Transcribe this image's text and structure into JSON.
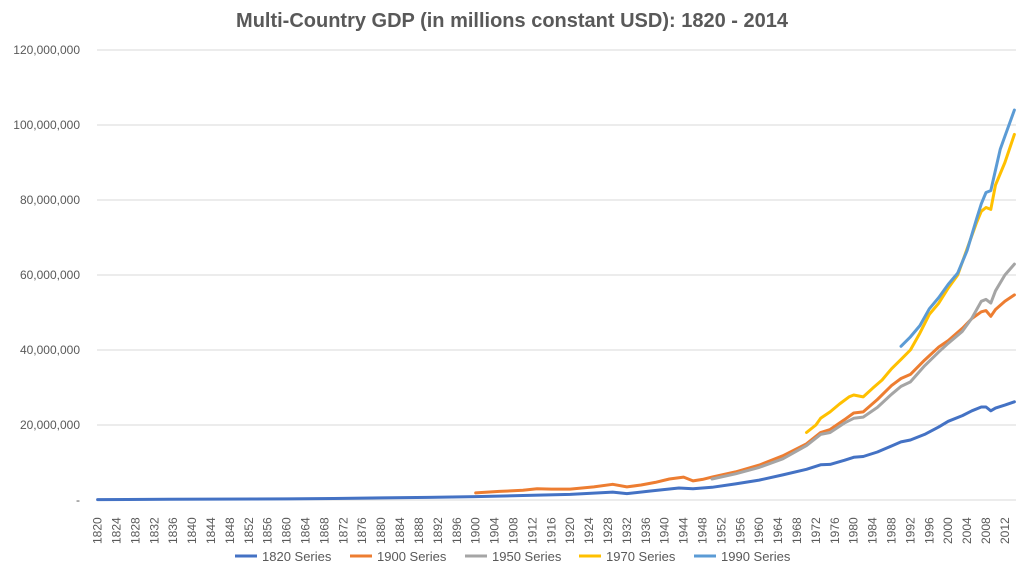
{
  "chart_data": {
    "type": "line",
    "title": "Multi-Country GDP (in millions constant USD): 1820 - 2014",
    "xlabel": "",
    "ylabel": "",
    "xlim": [
      1820,
      2014
    ],
    "ylim": [
      0,
      120000000
    ],
    "y_ticks": [
      0,
      20000000,
      40000000,
      60000000,
      80000000,
      100000000,
      120000000
    ],
    "y_tick_labels": [
      "-",
      "20,000,000",
      "40,000,000",
      "60,000,000",
      "80,000,000",
      "100,000,000",
      "120,000,000"
    ],
    "x_tick_labels": [
      "1820",
      "1824",
      "1828",
      "1832",
      "1836",
      "1840",
      "1844",
      "1848",
      "1852",
      "1856",
      "1860",
      "1864",
      "1868",
      "1872",
      "1876",
      "1880",
      "1884",
      "1888",
      "1892",
      "1896",
      "1900",
      "1904",
      "1908",
      "1912",
      "1916",
      "1920",
      "1924",
      "1928",
      "1932",
      "1936",
      "1940",
      "1944",
      "1948",
      "1952",
      "1956",
      "1960",
      "1964",
      "1968",
      "1972",
      "1976",
      "1980",
      "1984",
      "1988",
      "1992",
      "1996",
      "2000",
      "2004",
      "2008",
      "2012"
    ],
    "grid": true,
    "legend_position": "bottom",
    "series": [
      {
        "name": "1820 Series",
        "color": "#4472C4",
        "points": [
          [
            1820,
            100000
          ],
          [
            1835,
            200000
          ],
          [
            1860,
            300000
          ],
          [
            1870,
            400000
          ],
          [
            1880,
            550000
          ],
          [
            1890,
            700000
          ],
          [
            1900,
            900000
          ],
          [
            1910,
            1200000
          ],
          [
            1920,
            1500000
          ],
          [
            1929,
            2100000
          ],
          [
            1932,
            1700000
          ],
          [
            1937,
            2400000
          ],
          [
            1943,
            3200000
          ],
          [
            1946,
            3000000
          ],
          [
            1950,
            3400000
          ],
          [
            1955,
            4300000
          ],
          [
            1960,
            5300000
          ],
          [
            1965,
            6700000
          ],
          [
            1970,
            8200000
          ],
          [
            1973,
            9400000
          ],
          [
            1975,
            9500000
          ],
          [
            1978,
            10600000
          ],
          [
            1980,
            11400000
          ],
          [
            1982,
            11600000
          ],
          [
            1985,
            12800000
          ],
          [
            1988,
            14400000
          ],
          [
            1990,
            15500000
          ],
          [
            1992,
            16000000
          ],
          [
            1995,
            17500000
          ],
          [
            1998,
            19500000
          ],
          [
            2000,
            21000000
          ],
          [
            2003,
            22500000
          ],
          [
            2005,
            23800000
          ],
          [
            2007,
            24800000
          ],
          [
            2008,
            24800000
          ],
          [
            2009,
            23800000
          ],
          [
            2010,
            24500000
          ],
          [
            2012,
            25300000
          ],
          [
            2014,
            26200000
          ]
        ]
      },
      {
        "name": "1900 Series",
        "color": "#ED7D31",
        "points": [
          [
            1900,
            1900000
          ],
          [
            1905,
            2300000
          ],
          [
            1910,
            2600000
          ],
          [
            1913,
            3000000
          ],
          [
            1916,
            2900000
          ],
          [
            1920,
            2900000
          ],
          [
            1925,
            3500000
          ],
          [
            1929,
            4200000
          ],
          [
            1932,
            3500000
          ],
          [
            1935,
            4000000
          ],
          [
            1938,
            4700000
          ],
          [
            1941,
            5600000
          ],
          [
            1944,
            6100000
          ],
          [
            1946,
            5100000
          ],
          [
            1948,
            5500000
          ],
          [
            1950,
            6100000
          ],
          [
            1955,
            7500000
          ],
          [
            1960,
            9300000
          ],
          [
            1965,
            11800000
          ],
          [
            1970,
            15000000
          ],
          [
            1973,
            18000000
          ],
          [
            1975,
            18800000
          ],
          [
            1978,
            21400000
          ],
          [
            1980,
            23200000
          ],
          [
            1982,
            23500000
          ],
          [
            1985,
            26800000
          ],
          [
            1988,
            30500000
          ],
          [
            1990,
            32400000
          ],
          [
            1992,
            33500000
          ],
          [
            1995,
            37300000
          ],
          [
            1998,
            40800000
          ],
          [
            2000,
            42500000
          ],
          [
            2003,
            45800000
          ],
          [
            2005,
            48400000
          ],
          [
            2007,
            50200000
          ],
          [
            2008,
            50500000
          ],
          [
            2009,
            49000000
          ],
          [
            2010,
            50800000
          ],
          [
            2012,
            53000000
          ],
          [
            2014,
            54700000
          ]
        ]
      },
      {
        "name": "1950 Series",
        "color": "#A5A5A5",
        "points": [
          [
            1950,
            5600000
          ],
          [
            1955,
            7000000
          ],
          [
            1960,
            8700000
          ],
          [
            1965,
            11000000
          ],
          [
            1970,
            14500000
          ],
          [
            1973,
            17500000
          ],
          [
            1975,
            18000000
          ],
          [
            1978,
            20500000
          ],
          [
            1980,
            21800000
          ],
          [
            1982,
            22100000
          ],
          [
            1985,
            24700000
          ],
          [
            1988,
            28200000
          ],
          [
            1990,
            30300000
          ],
          [
            1992,
            31500000
          ],
          [
            1995,
            35800000
          ],
          [
            1998,
            39500000
          ],
          [
            2000,
            41800000
          ],
          [
            2003,
            45000000
          ],
          [
            2005,
            48500000
          ],
          [
            2007,
            53000000
          ],
          [
            2008,
            53500000
          ],
          [
            2009,
            52500000
          ],
          [
            2010,
            55800000
          ],
          [
            2012,
            60000000
          ],
          [
            2014,
            62900000
          ]
        ]
      },
      {
        "name": "1970 Series",
        "color": "#FFC000",
        "points": [
          [
            1970,
            18000000
          ],
          [
            1972,
            20000000
          ],
          [
            1973,
            21800000
          ],
          [
            1975,
            23500000
          ],
          [
            1977,
            25600000
          ],
          [
            1979,
            27500000
          ],
          [
            1980,
            28000000
          ],
          [
            1982,
            27500000
          ],
          [
            1984,
            29800000
          ],
          [
            1986,
            32000000
          ],
          [
            1988,
            35000000
          ],
          [
            1990,
            37500000
          ],
          [
            1992,
            40000000
          ],
          [
            1994,
            44500000
          ],
          [
            1996,
            49500000
          ],
          [
            1998,
            52500000
          ],
          [
            2000,
            56500000
          ],
          [
            2002,
            60000000
          ],
          [
            2004,
            67000000
          ],
          [
            2006,
            74000000
          ],
          [
            2007,
            77000000
          ],
          [
            2008,
            78000000
          ],
          [
            2009,
            77500000
          ],
          [
            2010,
            84000000
          ],
          [
            2012,
            90000000
          ],
          [
            2014,
            97500000
          ]
        ]
      },
      {
        "name": "1990 Series",
        "color": "#5B9BD5",
        "points": [
          [
            1990,
            41000000
          ],
          [
            1992,
            43500000
          ],
          [
            1994,
            46500000
          ],
          [
            1996,
            51000000
          ],
          [
            1998,
            54000000
          ],
          [
            2000,
            57500000
          ],
          [
            2002,
            60500000
          ],
          [
            2004,
            66500000
          ],
          [
            2006,
            75000000
          ],
          [
            2007,
            79000000
          ],
          [
            2008,
            82000000
          ],
          [
            2009,
            82500000
          ],
          [
            2010,
            88000000
          ],
          [
            2011,
            93500000
          ],
          [
            2012,
            97000000
          ],
          [
            2014,
            104000000
          ]
        ]
      }
    ]
  }
}
